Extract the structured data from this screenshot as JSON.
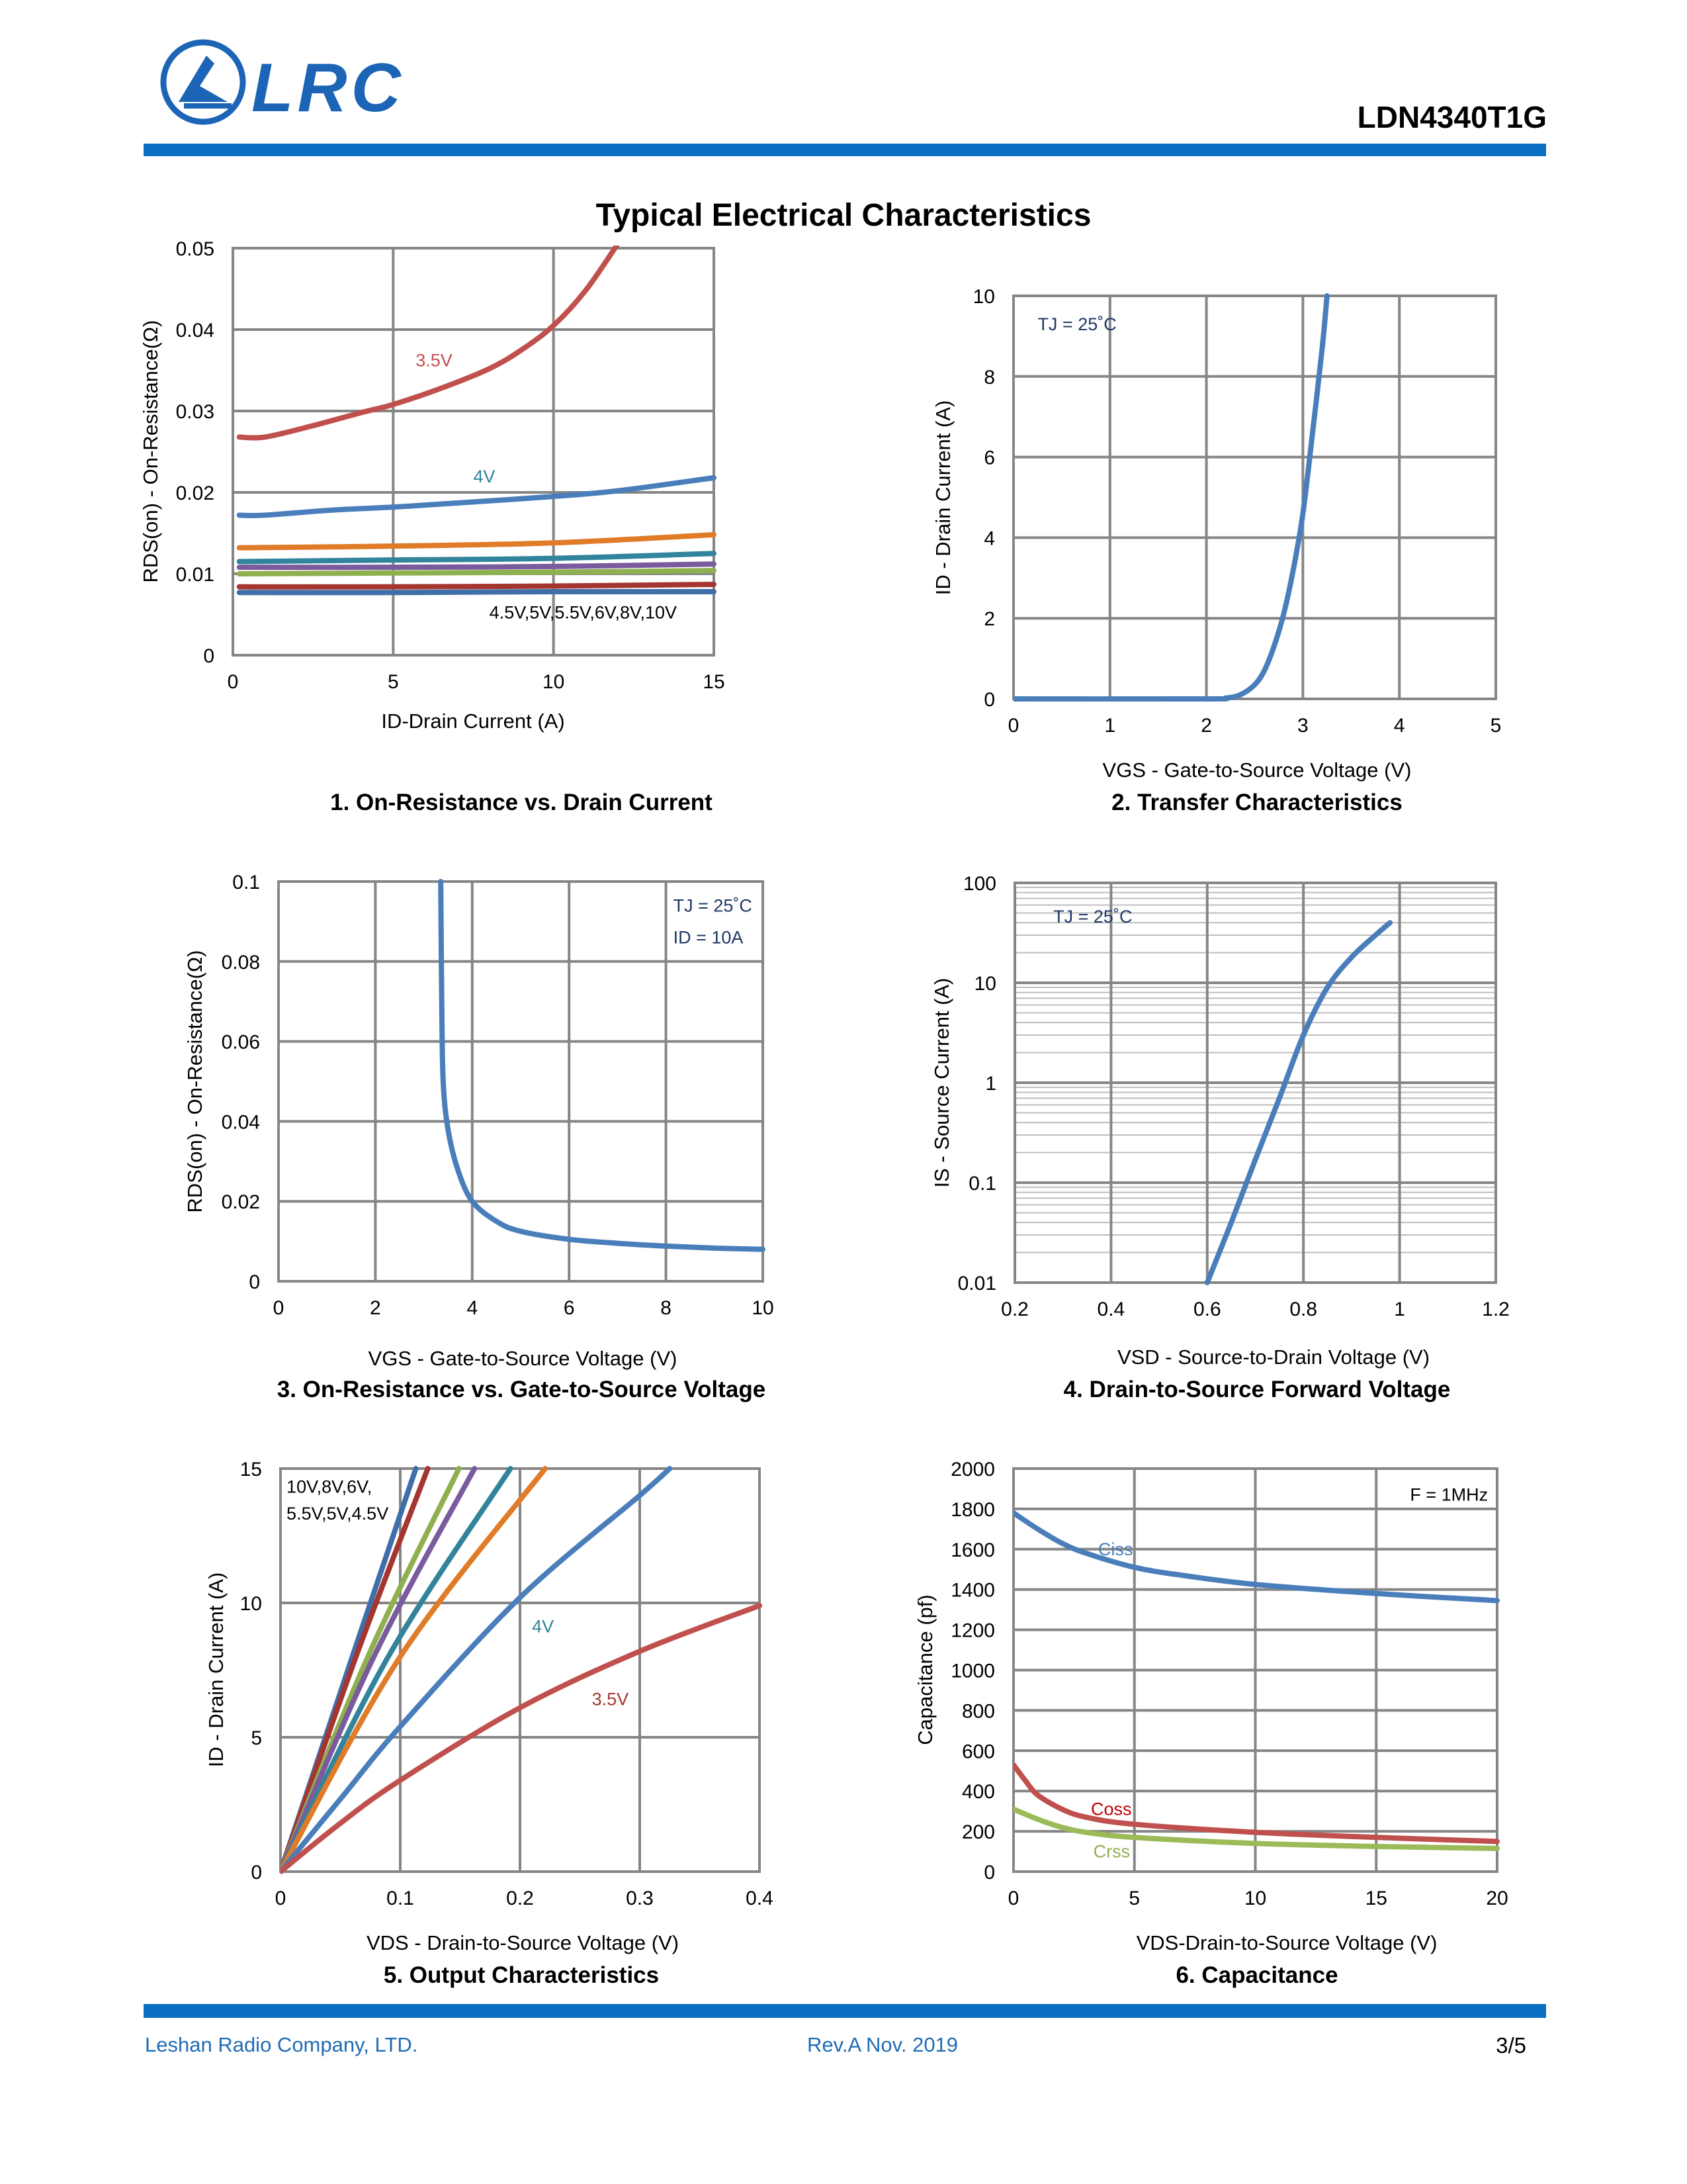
{
  "header": {
    "logo_text": "LRC",
    "part_number": "LDN4340T1G",
    "accent_color": "#0A6FC2"
  },
  "page_title": "Typical Electrical Characteristics",
  "footer": {
    "company": "Leshan Radio Company, LTD.",
    "revision": "Rev.A  Nov. 2019",
    "page": "3/5"
  },
  "chart_data": [
    {
      "type": "line",
      "title": "1. On-Resistance vs. Drain Current",
      "xlabel": "ID-Drain Current (A)",
      "ylabel": "RDS(on) - On-Resistance(Ω)",
      "xlim": [
        0,
        15
      ],
      "ylim": [
        0,
        0.05
      ],
      "yscale": "linear",
      "grid": true,
      "xticks": [
        "0",
        "5",
        "10",
        "15"
      ],
      "yticks": [
        "0",
        "0.01",
        "0.02",
        "0.03",
        "0.04",
        "0.05"
      ],
      "series": [
        {
          "name": "3.5V",
          "color": "#C0504D",
          "points": [
            [
              0.2,
              0.0268
            ],
            [
              1,
              0.0268
            ],
            [
              2.5,
              0.0282
            ],
            [
              4,
              0.0298
            ],
            [
              5,
              0.0308
            ],
            [
              6.5,
              0.0328
            ],
            [
              8,
              0.0352
            ],
            [
              9,
              0.0375
            ],
            [
              10,
              0.0405
            ],
            [
              11,
              0.0448
            ],
            [
              12,
              0.0505
            ]
          ]
        },
        {
          "name": "4V",
          "color": "#4A7EBB",
          "points": [
            [
              0.2,
              0.0172
            ],
            [
              1,
              0.0172
            ],
            [
              3,
              0.0178
            ],
            [
              5,
              0.0182
            ],
            [
              7,
              0.0187
            ],
            [
              10,
              0.0195
            ],
            [
              12,
              0.0202
            ],
            [
              15,
              0.0218
            ]
          ]
        },
        {
          "color": "#E07B27",
          "points": [
            [
              0.2,
              0.0132
            ],
            [
              5,
              0.0134
            ],
            [
              10,
              0.0138
            ],
            [
              15,
              0.0148
            ]
          ]
        },
        {
          "color": "#31849B",
          "points": [
            [
              0.2,
              0.0115
            ],
            [
              5,
              0.0117
            ],
            [
              10,
              0.0119
            ],
            [
              15,
              0.0125
            ]
          ]
        },
        {
          "color": "#7A5C9E",
          "points": [
            [
              0.2,
              0.0108
            ],
            [
              5,
              0.0108
            ],
            [
              10,
              0.0109
            ],
            [
              15,
              0.0112
            ]
          ]
        },
        {
          "color": "#8FB04F",
          "points": [
            [
              0.2,
              0.01
            ],
            [
              5,
              0.0101
            ],
            [
              10,
              0.0102
            ],
            [
              15,
              0.0104
            ]
          ]
        },
        {
          "color": "#A5362F",
          "points": [
            [
              0.2,
              0.0084
            ],
            [
              5,
              0.0084
            ],
            [
              10,
              0.0085
            ],
            [
              15,
              0.0087
            ]
          ]
        },
        {
          "color": "#3F6EA8",
          "points": [
            [
              0.2,
              0.0077
            ],
            [
              5,
              0.0077
            ],
            [
              10,
              0.0078
            ],
            [
              15,
              0.0078
            ]
          ]
        }
      ],
      "annotations": [
        {
          "text": "3.5V",
          "x": 5.7,
          "y": 0.0355,
          "color": "#C0504D"
        },
        {
          "text": "4V",
          "x": 7.5,
          "y": 0.0212,
          "color": "#31849B"
        },
        {
          "text": "4.5V,5V,5.5V,6V,8V,10V",
          "x": 8,
          "y": 0.0045,
          "color": "#000000"
        }
      ]
    },
    {
      "type": "line",
      "title": "2. Transfer Characteristics",
      "xlabel": "VGS - Gate-to-Source Voltage (V)",
      "ylabel": "ID - Drain Current (A)",
      "xlim": [
        0,
        5
      ],
      "ylim": [
        0,
        10
      ],
      "yscale": "linear",
      "grid": true,
      "xticks": [
        "0",
        "1",
        "2",
        "3",
        "4",
        "5"
      ],
      "yticks": [
        "0",
        "2",
        "4",
        "6",
        "8",
        "10"
      ],
      "series": [
        {
          "color": "#4A7EBB",
          "points": [
            [
              0,
              0
            ],
            [
              2,
              0
            ],
            [
              2.2,
              0.02
            ],
            [
              2.35,
              0.1
            ],
            [
              2.5,
              0.35
            ],
            [
              2.6,
              0.7
            ],
            [
              2.7,
              1.3
            ],
            [
              2.8,
              2.1
            ],
            [
              2.9,
              3.2
            ],
            [
              3.0,
              4.6
            ],
            [
              3.1,
              6.6
            ],
            [
              3.2,
              8.7
            ],
            [
              3.25,
              10
            ]
          ]
        }
      ],
      "annotations": [
        {
          "text": "TJ = 25˚C",
          "x": 0.25,
          "y": 9.15,
          "color": "#1F3864"
        }
      ]
    },
    {
      "type": "line",
      "title": "3. On-Resistance vs. Gate-to-Source Voltage",
      "xlabel": "VGS - Gate-to-Source Voltage (V)",
      "ylabel": "RDS(on) - On-Resistance(Ω)",
      "xlim": [
        0,
        10
      ],
      "ylim": [
        0,
        0.1
      ],
      "yscale": "linear",
      "grid": true,
      "xticks": [
        "0",
        "2",
        "4",
        "6",
        "8",
        "10"
      ],
      "yticks": [
        "0",
        "0.02",
        "0.04",
        "0.06",
        "0.08",
        "0.1"
      ],
      "series": [
        {
          "color": "#4A7EBB",
          "points": [
            [
              3.35,
              0.1
            ],
            [
              3.37,
              0.07
            ],
            [
              3.4,
              0.05
            ],
            [
              3.5,
              0.038
            ],
            [
              3.7,
              0.028
            ],
            [
              4,
              0.02
            ],
            [
              4.5,
              0.015
            ],
            [
              5,
              0.0125
            ],
            [
              6,
              0.0105
            ],
            [
              7,
              0.0095
            ],
            [
              8,
              0.0088
            ],
            [
              9,
              0.0083
            ],
            [
              10,
              0.008
            ]
          ]
        }
      ],
      "annotations": [
        {
          "text": "TJ = 25˚C",
          "x": 8.15,
          "y": 0.0925,
          "color": "#1F3864"
        },
        {
          "text": "ID = 10A",
          "x": 8.15,
          "y": 0.0845,
          "color": "#1F3864"
        }
      ]
    },
    {
      "type": "line",
      "title": "4. Drain-to-Source Forward Voltage",
      "xlabel": "VSD - Source-to-Drain Voltage (V)",
      "ylabel": "IS - Source Current (A)",
      "xlim": [
        0.2,
        1.2
      ],
      "ylim": [
        0.01,
        100
      ],
      "yscale": "log",
      "grid": true,
      "xticks": [
        "0.2",
        "0.4",
        "0.6",
        "0.8",
        "1",
        "1.2"
      ],
      "yticks": [
        "0.01",
        "0.1",
        "1",
        "10",
        "100"
      ],
      "series": [
        {
          "color": "#4A7EBB",
          "points": [
            [
              0.6,
              0.01
            ],
            [
              0.65,
              0.04
            ],
            [
              0.7,
              0.17
            ],
            [
              0.75,
              0.7
            ],
            [
              0.8,
              3
            ],
            [
              0.85,
              9
            ],
            [
              0.9,
              18
            ],
            [
              0.95,
              30
            ],
            [
              0.98,
              40
            ]
          ]
        }
      ],
      "annotations": [
        {
          "text": "TJ = 25˚C",
          "x": 0.28,
          "y": 40,
          "color": "#1F3864"
        }
      ]
    },
    {
      "type": "line",
      "title": "5. Output Characteristics",
      "xlabel": "VDS - Drain-to-Source Voltage (V)",
      "ylabel": "ID - Drain Current (A)",
      "xlim": [
        0,
        0.4
      ],
      "ylim": [
        0,
        15
      ],
      "yscale": "linear",
      "grid": true,
      "xticks": [
        "0",
        "0.1",
        "0.2",
        "0.3",
        "0.4"
      ],
      "yticks": [
        "0",
        "5",
        "10",
        "15"
      ],
      "series": [
        {
          "name": "10V",
          "color": "#3F6EA8",
          "points": [
            [
              0,
              0
            ],
            [
              0.06,
              8
            ],
            [
              0.113,
              15
            ]
          ]
        },
        {
          "name": "8V",
          "color": "#A5362F",
          "points": [
            [
              0,
              0
            ],
            [
              0.063,
              8
            ],
            [
              0.123,
              15
            ]
          ]
        },
        {
          "name": "6V",
          "color": "#8FB04F",
          "points": [
            [
              0,
              0
            ],
            [
              0.073,
              8
            ],
            [
              0.149,
              15
            ]
          ]
        },
        {
          "name": "5.5V",
          "color": "#7A5C9E",
          "points": [
            [
              0,
              0
            ],
            [
              0.078,
              8
            ],
            [
              0.162,
              15
            ]
          ]
        },
        {
          "name": "5V",
          "color": "#31849B",
          "points": [
            [
              0,
              0
            ],
            [
              0.09,
              8
            ],
            [
              0.192,
              15
            ]
          ]
        },
        {
          "name": "4.5V",
          "color": "#E07B27",
          "points": [
            [
              0,
              0
            ],
            [
              0.1,
              8
            ],
            [
              0.221,
              15
            ]
          ]
        },
        {
          "name": "4V",
          "color": "#4A7EBB",
          "points": [
            [
              0,
              0
            ],
            [
              0.05,
              2.7
            ],
            [
              0.1,
              5.4
            ],
            [
              0.2,
              10.2
            ],
            [
              0.3,
              14
            ],
            [
              0.325,
              15
            ]
          ]
        },
        {
          "name": "3.5V",
          "color": "#C0504D",
          "points": [
            [
              0,
              0
            ],
            [
              0.05,
              1.8
            ],
            [
              0.1,
              3.4
            ],
            [
              0.2,
              6.1
            ],
            [
              0.3,
              8.2
            ],
            [
              0.4,
              9.9
            ]
          ]
        }
      ],
      "annotations": [
        {
          "text": "10V,8V,6V,",
          "x": 0.005,
          "y": 14.1,
          "color": "#000000"
        },
        {
          "text": "5.5V,5V,4.5V",
          "x": 0.005,
          "y": 13.1,
          "color": "#000000"
        },
        {
          "text": "4V",
          "x": 0.21,
          "y": 8.9,
          "color": "#31849B"
        },
        {
          "text": "3.5V",
          "x": 0.26,
          "y": 6.2,
          "color": "#A5362F"
        }
      ]
    },
    {
      "type": "line",
      "title": "6. Capacitance",
      "xlabel": "VDS-Drain-to-Source Voltage (V)",
      "ylabel": "Capacitance (pf)",
      "xlim": [
        0,
        20
      ],
      "ylim": [
        0,
        2000
      ],
      "yscale": "linear",
      "grid": true,
      "xticks": [
        "0",
        "5",
        "10",
        "15",
        "20"
      ],
      "yticks": [
        "0",
        "200",
        "400",
        "600",
        "800",
        "1000",
        "1200",
        "1400",
        "1600",
        "1800",
        "2000"
      ],
      "series": [
        {
          "name": "Ciss",
          "color": "#4A7EBB",
          "points": [
            [
              0,
              1780
            ],
            [
              1,
              1700
            ],
            [
              2,
              1630
            ],
            [
              3,
              1580
            ],
            [
              5,
              1510
            ],
            [
              7,
              1470
            ],
            [
              10,
              1425
            ],
            [
              15,
              1380
            ],
            [
              20,
              1345
            ]
          ]
        },
        {
          "name": "Coss",
          "color": "#C0504D",
          "points": [
            [
              0,
              530
            ],
            [
              0.5,
              450
            ],
            [
              1,
              380
            ],
            [
              2,
              310
            ],
            [
              3,
              270
            ],
            [
              5,
              235
            ],
            [
              10,
              195
            ],
            [
              15,
              170
            ],
            [
              20,
              150
            ]
          ]
        },
        {
          "name": "Crss",
          "color": "#9BBB59",
          "points": [
            [
              0,
              310
            ],
            [
              1,
              260
            ],
            [
              2,
              220
            ],
            [
              3,
              195
            ],
            [
              5,
              170
            ],
            [
              10,
              140
            ],
            [
              15,
              125
            ],
            [
              20,
              115
            ]
          ]
        }
      ],
      "annotations": [
        {
          "text": "Ciss",
          "x": 3.5,
          "y": 1570,
          "color": "#4A7EBB"
        },
        {
          "text": "Coss",
          "x": 3.2,
          "y": 280,
          "color": "#C00000"
        },
        {
          "text": "Crss",
          "x": 3.3,
          "y": 70,
          "color": "#8FB04F"
        },
        {
          "text": "F = 1MHz",
          "x": 16.4,
          "y": 1840,
          "color": "#000000"
        }
      ]
    }
  ]
}
